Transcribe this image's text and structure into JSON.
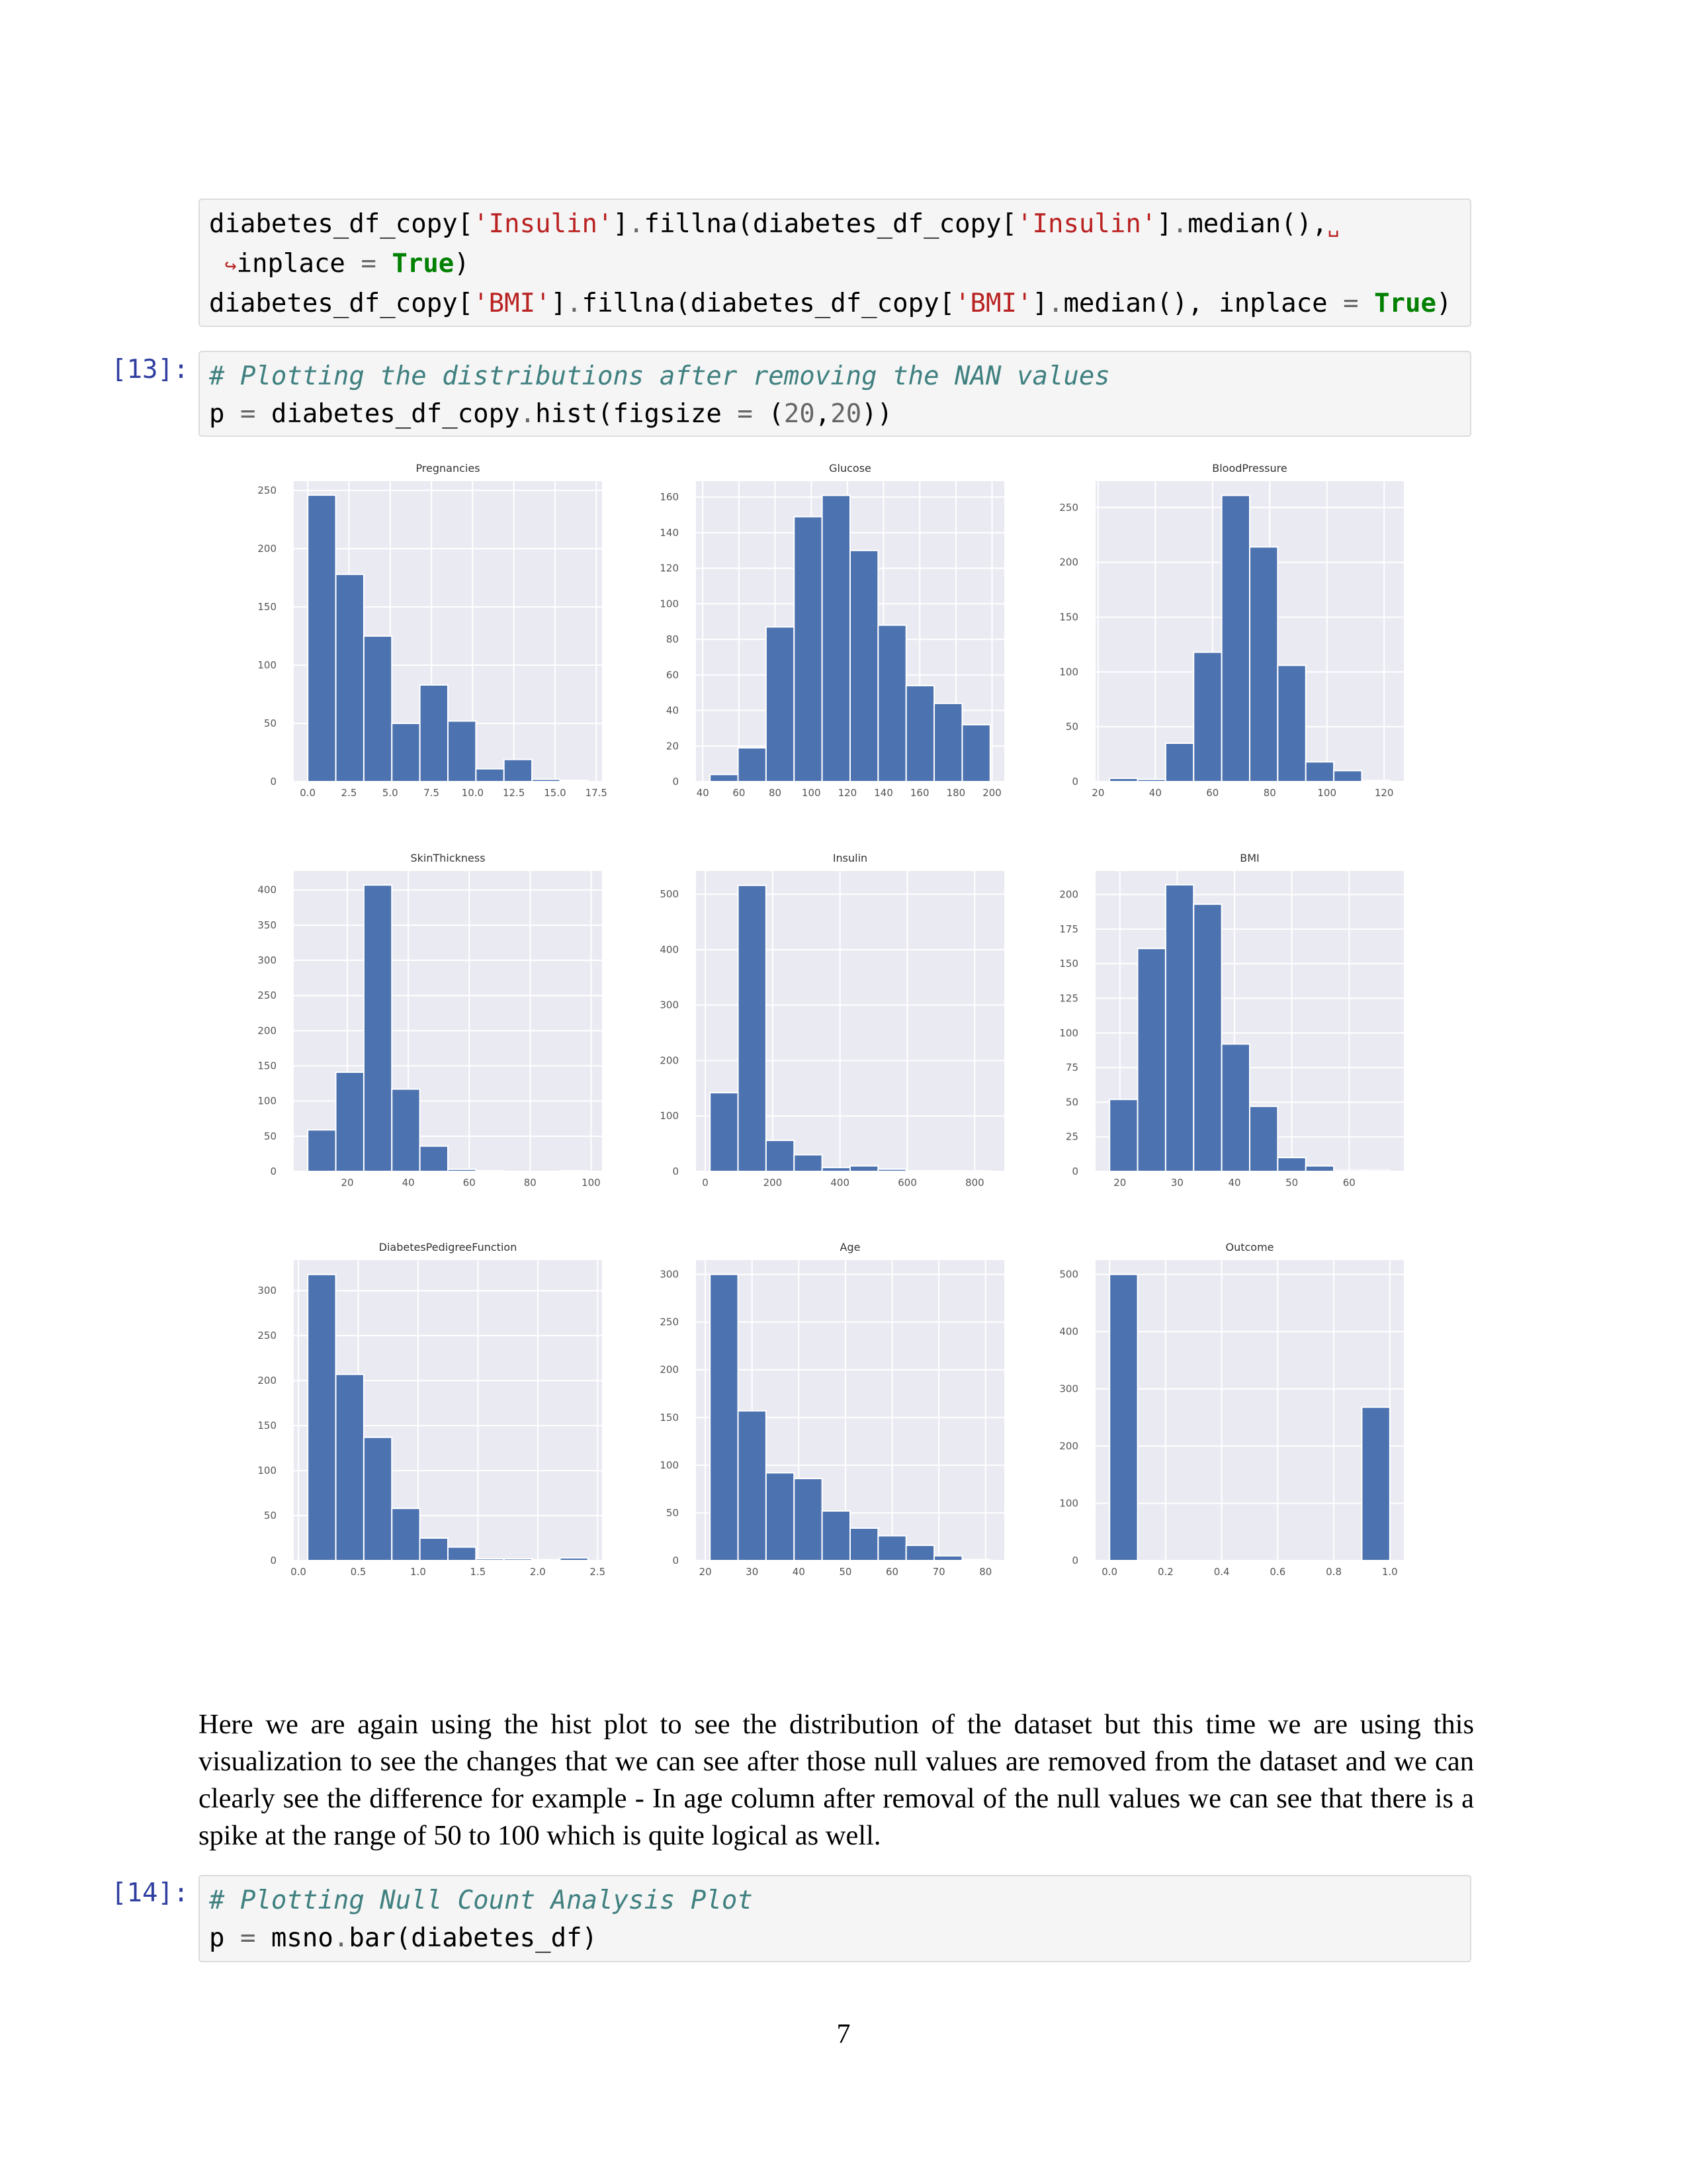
{
  "cells": [
    {
      "lines": [
        "diabetes_df_copy['Insulin'].fillna(diabetes_df_copy['Insulin'].median(),␣",
        " ↪inplace = True)",
        "diabetes_df_copy['BMI'].fillna(diabetes_df_copy['BMI'].median(), inplace = True)"
      ]
    },
    {
      "prompt": "[13]:",
      "lines": [
        "# Plotting the distributions after removing the NAN values",
        "p = diabetes_df_copy.hist(figsize = (20,20))"
      ]
    },
    {
      "prompt": "[14]:",
      "lines": [
        "# Plotting Null Count Analysis Plot",
        "p = msno.bar(diabetes_df)"
      ]
    }
  ],
  "chart_data": [
    {
      "type": "histogram",
      "title": "Pregnancies",
      "color": "#4c72b0",
      "grid": true,
      "bins": [
        0,
        1.7,
        3.4,
        5.1,
        6.8,
        8.5,
        10.2,
        11.9,
        13.6,
        15.3,
        17
      ],
      "values": [
        246,
        178,
        125,
        50,
        83,
        52,
        11,
        19,
        2,
        1
      ],
      "xlim": [
        -0.85,
        17.85
      ],
      "xticks": [
        {
          "value": 0,
          "label": "0.0"
        },
        {
          "value": 2.5,
          "label": "2.5"
        },
        {
          "value": 5,
          "label": "5.0"
        },
        {
          "value": 7.5,
          "label": "7.5"
        },
        {
          "value": 10,
          "label": "10.0"
        },
        {
          "value": 12.5,
          "label": "12.5"
        },
        {
          "value": 15,
          "label": "15.0"
        },
        {
          "value": 17.5,
          "label": "17.5"
        }
      ],
      "ylim": [
        0,
        258
      ],
      "yticks": [
        0,
        50,
        100,
        150,
        200,
        250
      ]
    },
    {
      "type": "histogram",
      "title": "Glucose",
      "color": "#4c72b0",
      "grid": true,
      "bins": [
        44,
        59.5,
        75,
        90.5,
        106,
        121.5,
        137,
        152.5,
        168,
        183.5,
        199
      ],
      "values": [
        4,
        19,
        87,
        149,
        161,
        130,
        88,
        54,
        44,
        32
      ],
      "xlim": [
        36.25,
        206.75
      ],
      "xticks": [
        40,
        60,
        80,
        100,
        120,
        140,
        160,
        180,
        200
      ],
      "ylim": [
        0,
        169
      ],
      "yticks": [
        0,
        20,
        40,
        60,
        80,
        100,
        120,
        140,
        160
      ]
    },
    {
      "type": "histogram",
      "title": "BloodPressure",
      "color": "#4c72b0",
      "grid": true,
      "bins": [
        24,
        33.8,
        43.6,
        53.4,
        63.2,
        73,
        82.8,
        92.6,
        102.4,
        112.2,
        122
      ],
      "values": [
        3,
        2,
        35,
        118,
        261,
        214,
        106,
        18,
        10,
        1
      ],
      "xlim": [
        19.1,
        126.9
      ],
      "xticks": [
        20,
        40,
        60,
        80,
        100,
        120
      ],
      "ylim": [
        0,
        274
      ],
      "yticks": [
        0,
        50,
        100,
        150,
        200,
        250
      ]
    },
    {
      "type": "histogram",
      "title": "SkinThickness",
      "color": "#4c72b0",
      "grid": true,
      "bins": [
        7,
        16.2,
        25.4,
        34.6,
        43.8,
        53,
        62.2,
        71.4,
        80.6,
        89.8,
        99
      ],
      "values": [
        59,
        141,
        407,
        117,
        36,
        3,
        1,
        0,
        0,
        1
      ],
      "xlim": [
        2.4,
        103.6
      ],
      "xticks": [
        20,
        40,
        60,
        80,
        100
      ],
      "ylim": [
        0,
        427
      ],
      "yticks": [
        0,
        50,
        100,
        150,
        200,
        250,
        300,
        350,
        400
      ]
    },
    {
      "type": "histogram",
      "title": "Insulin",
      "color": "#4c72b0",
      "grid": true,
      "bins": [
        14,
        97.2,
        180.4,
        263.6,
        346.8,
        430,
        513.2,
        596.4,
        679.6,
        762.8,
        846
      ],
      "values": [
        142,
        516,
        56,
        30,
        7,
        10,
        4,
        1,
        1,
        1
      ],
      "xlim": [
        -27.6,
        887.6
      ],
      "xticks": [
        0,
        200,
        400,
        600,
        800
      ],
      "ylim": [
        0,
        542
      ],
      "yticks": [
        0,
        100,
        200,
        300,
        400,
        500
      ]
    },
    {
      "type": "histogram",
      "title": "BMI",
      "color": "#4c72b0",
      "grid": true,
      "bins": [
        18.2,
        23.09,
        27.98,
        32.87,
        37.76,
        42.65,
        47.54,
        52.43,
        57.32,
        62.21,
        67.1
      ],
      "values": [
        52,
        161,
        207,
        193,
        92,
        47,
        10,
        4,
        1,
        1
      ],
      "xlim": [
        15.755,
        69.545
      ],
      "xticks": [
        20,
        30,
        40,
        50,
        60
      ],
      "ylim": [
        0,
        217
      ],
      "yticks": [
        0,
        25,
        50,
        75,
        100,
        125,
        150,
        175,
        200
      ]
    },
    {
      "type": "histogram",
      "title": "DiabetesPedigreeFunction",
      "color": "#4c72b0",
      "grid": true,
      "bins": [
        0.078,
        0.3122,
        0.5464,
        0.7806,
        1.0148,
        1.249,
        1.4832,
        1.7174,
        1.9516,
        2.1858,
        2.42
      ],
      "values": [
        318,
        207,
        137,
        58,
        25,
        15,
        2,
        2,
        1,
        3
      ],
      "xlim": [
        -0.039,
        2.537
      ],
      "xticks": [
        {
          "value": 0,
          "label": "0.0"
        },
        {
          "value": 0.5,
          "label": "0.5"
        },
        {
          "value": 1,
          "label": "1.0"
        },
        {
          "value": 1.5,
          "label": "1.5"
        },
        {
          "value": 2,
          "label": "2.0"
        },
        {
          "value": 2.5,
          "label": "2.5"
        }
      ],
      "ylim": [
        0,
        334
      ],
      "yticks": [
        0,
        50,
        100,
        150,
        200,
        250,
        300
      ]
    },
    {
      "type": "histogram",
      "title": "Age",
      "color": "#4c72b0",
      "grid": true,
      "bins": [
        21,
        27,
        33,
        39,
        45,
        51,
        57,
        63,
        69,
        75,
        81
      ],
      "values": [
        300,
        157,
        92,
        86,
        52,
        34,
        26,
        16,
        5,
        1
      ],
      "xlim": [
        18,
        84
      ],
      "xticks": [
        20,
        30,
        40,
        50,
        60,
        70,
        80
      ],
      "ylim": [
        0,
        315
      ],
      "yticks": [
        0,
        50,
        100,
        150,
        200,
        250,
        300
      ]
    },
    {
      "type": "histogram",
      "title": "Outcome",
      "color": "#4c72b0",
      "grid": true,
      "bins": [
        0,
        0.1,
        0.2,
        0.3,
        0.4,
        0.5,
        0.6,
        0.7,
        0.8,
        0.9,
        1
      ],
      "values": [
        500,
        0,
        0,
        0,
        0,
        0,
        0,
        0,
        0,
        268
      ],
      "xlim": [
        -0.05,
        1.05
      ],
      "xticks": [
        {
          "value": 0,
          "label": "0.0"
        },
        {
          "value": 0.2,
          "label": "0.2"
        },
        {
          "value": 0.4,
          "label": "0.4"
        },
        {
          "value": 0.6,
          "label": "0.6"
        },
        {
          "value": 0.8,
          "label": "0.8"
        },
        {
          "value": 1,
          "label": "1.0"
        }
      ],
      "ylim": [
        0,
        525
      ],
      "yticks": [
        0,
        100,
        200,
        300,
        400,
        500
      ]
    }
  ],
  "paragraph": "Here we are again using the hist plot to see the distribution of the dataset but this time we are using this visualization to see the changes that we can see after those null values are removed from the dataset and we can clearly see the difference for example - In age column after removal of the null values we can see that there is a spike at the range of 50 to 100 which is quite logical as well.",
  "page_number": "7"
}
